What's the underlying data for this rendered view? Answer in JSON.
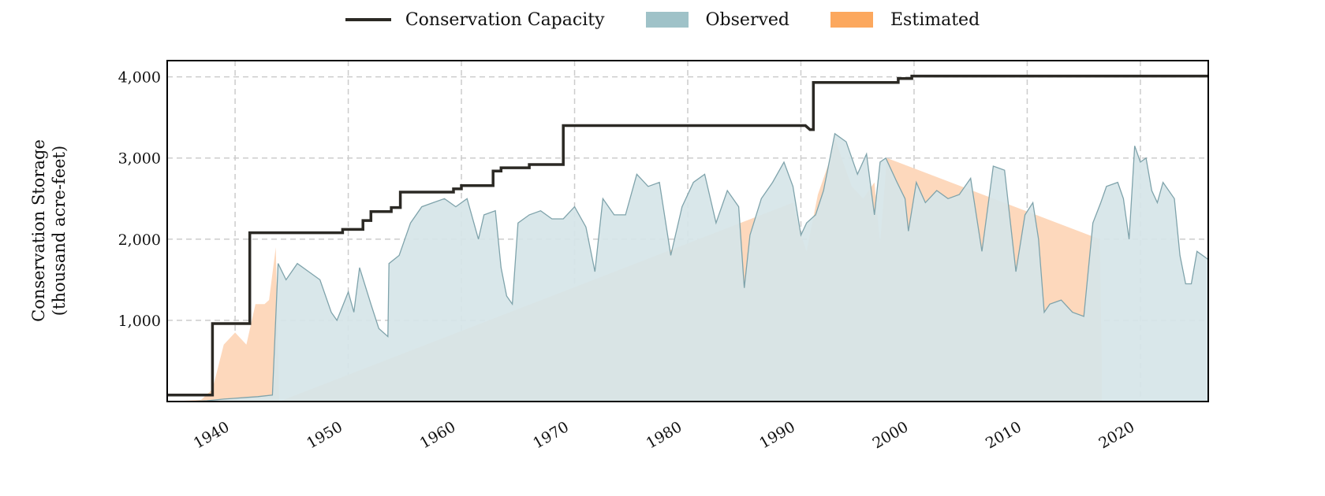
{
  "chart_data": {
    "type": "area",
    "title": "",
    "ylabel_line1": "Conservation Storage",
    "ylabel_line2": "(thousand acre-feet)",
    "xlabel": "",
    "xlim": [
      1934,
      2026
    ],
    "ylim": [
      0,
      4200
    ],
    "x_ticks": [
      1940,
      1950,
      1960,
      1970,
      1980,
      1990,
      2000,
      2010,
      2020
    ],
    "y_ticks": [
      1000,
      2000,
      3000,
      4000
    ],
    "y_tick_labels": [
      "1,000",
      "2,000",
      "3,000",
      "4,000"
    ],
    "x_tick_labels": [
      "1940",
      "1950",
      "1960",
      "1970",
      "1980",
      "1990",
      "2000",
      "2010",
      "2020"
    ],
    "grid": true,
    "legend_position": "top-center",
    "colors": {
      "capacity": "#2b2924",
      "observed_fill": "#d6e5e8",
      "observed_line": "#7fa3ab",
      "observed_legend": "#9fc2c8",
      "estimated_fill": "#fdd8bc",
      "estimated_legend": "#fca85e"
    },
    "legend": [
      {
        "name": "Conservation Capacity",
        "kind": "line"
      },
      {
        "name": "Observed",
        "kind": "box"
      },
      {
        "name": "Estimated",
        "kind": "box"
      }
    ],
    "series": [
      {
        "name": "Conservation Capacity",
        "step": true,
        "x": [
          1934,
          1938,
          1938,
          1941.3,
          1941.3,
          1949.5,
          1949.5,
          1951.3,
          1951.3,
          1952,
          1952,
          1953.8,
          1953.8,
          1954.6,
          1954.6,
          1959.3,
          1959.3,
          1960,
          1960,
          1962.8,
          1962.8,
          1963.5,
          1963.5,
          1966,
          1966,
          1969,
          1969,
          1990.4,
          1990.8,
          1991.1,
          1991.1,
          1998.6,
          1998.6,
          1999.8,
          1999.8,
          2026
        ],
        "y": [
          80,
          80,
          960,
          960,
          2080,
          2080,
          2120,
          2120,
          2230,
          2230,
          2340,
          2340,
          2390,
          2390,
          2580,
          2580,
          2620,
          2620,
          2660,
          2660,
          2840,
          2840,
          2880,
          2880,
          2920,
          2920,
          3400,
          3400,
          3350,
          3350,
          3930,
          3930,
          3980,
          3980,
          4010,
          4010
        ]
      },
      {
        "name": "Observed",
        "x": [
          1934,
          1936,
          1937.5,
          1939,
          1940,
          1941,
          1942,
          1943.3,
          1943.8,
          1944.5,
          1945.5,
          1946.5,
          1947.5,
          1948.5,
          1949,
          1950,
          1950.5,
          1951,
          1952,
          1952.7,
          1953.5,
          1953.6,
          1954.5,
          1955.5,
          1956.5,
          1957.5,
          1958.5,
          1959.5,
          1960.5,
          1961.5,
          1962,
          1963,
          1963.5,
          1964,
          1964.5,
          1965,
          1966,
          1967,
          1968,
          1969,
          1970,
          1971,
          1971.8,
          1972.5,
          1973.5,
          1974.5,
          1975.5,
          1976.5,
          1977.5,
          1978.5,
          1979.5,
          1980.5,
          1981.5,
          1982.5,
          1983.5,
          1984.5,
          1985,
          1985.5,
          1986.5,
          1987.5,
          1988.5,
          1989.3,
          1990,
          1990.5,
          1991.3,
          1992,
          1993,
          1994,
          1995,
          1995.8,
          1996.5,
          1997,
          1997.5,
          1998.5,
          1999.2,
          1999.5,
          2000.2,
          2001,
          2002,
          2003,
          2004,
          2005,
          2006,
          2007,
          2008,
          2009,
          2009.8,
          2010.5,
          2011,
          2011.5,
          2012,
          2013,
          2014,
          2015,
          2015.8,
          2016.5,
          2017,
          2018,
          2018.5,
          2019,
          2019.5,
          2020,
          2020.5,
          2021,
          2021.5,
          2022,
          2023,
          2023.5,
          2024,
          2024.5,
          2025,
          2026
        ],
        "y": [
          0,
          0,
          10,
          30,
          40,
          50,
          60,
          80,
          1700,
          1500,
          1700,
          1600,
          1500,
          1100,
          1000,
          1350,
          1100,
          1650,
          1200,
          900,
          800,
          1700,
          1800,
          2200,
          2400,
          2450,
          2500,
          2400,
          2500,
          2000,
          2300,
          2350,
          1650,
          1300,
          1200,
          2200,
          2300,
          2350,
          2250,
          2250,
          2400,
          2150,
          1600,
          2500,
          2300,
          2300,
          2800,
          2650,
          2700,
          1800,
          2400,
          2700,
          2800,
          2200,
          2600,
          2400,
          1400,
          2050,
          2500,
          2700,
          2950,
          2650,
          2050,
          2200,
          2300,
          2600,
          3300,
          3200,
          2800,
          3050,
          2300,
          2950,
          3000,
          2700,
          2500,
          2100,
          2700,
          2450,
          2600,
          2500,
          2550,
          2750,
          1850,
          2900,
          2850,
          1600,
          2300,
          2450,
          2000,
          1100,
          1200,
          1250,
          1100,
          1050,
          2200,
          2450,
          2650,
          2700,
          2500,
          2000,
          3150,
          2950,
          3000,
          2600,
          2450,
          2700,
          2500,
          1800,
          1450,
          1450,
          1850,
          1750
        ]
      },
      {
        "name": "Estimated",
        "x": [
          1934,
          1937,
          1938,
          1939,
          1940,
          1941,
          1941.8,
          1942.6,
          1943,
          1943.6,
          1943.9,
          1989.3,
          1990,
          1990.5,
          1991.5,
          1992.5,
          1993,
          1993.6,
          1994.5,
          1995.5,
          1996.5,
          1997,
          1997.6,
          2016.4,
          2016.6
        ],
        "y": [
          0,
          20,
          150,
          700,
          850,
          700,
          1200,
          1200,
          1250,
          1900,
          0,
          2450,
          2050,
          1850,
          2550,
          2950,
          3250,
          3000,
          2650,
          2500,
          2700,
          1950,
          3000,
          2000,
          450
        ]
      }
    ]
  }
}
